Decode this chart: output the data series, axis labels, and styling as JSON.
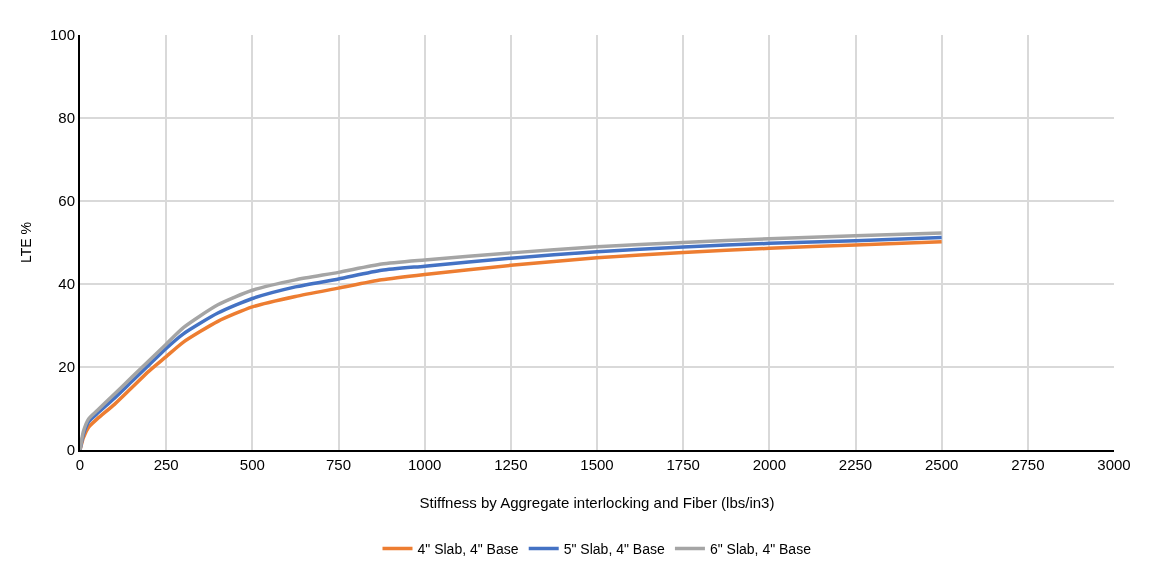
{
  "chart_data": {
    "type": "line",
    "xlabel": "Stiffness by Aggregate interlocking and Fiber (lbs/in3)",
    "ylabel": "LTE %",
    "x": [
      0,
      10,
      25,
      50,
      100,
      150,
      200,
      250,
      300,
      400,
      500,
      625,
      750,
      875,
      1000,
      1250,
      1500,
      1750,
      2000,
      2250,
      2500
    ],
    "series": [
      {
        "name": "4\" Slab, 4\" Base",
        "color": "#ed7d31",
        "values": [
          0,
          3,
          5.5,
          7.5,
          11,
          15,
          19,
          22.5,
          26,
          31,
          34.5,
          37,
          39,
          41,
          42.3,
          44.5,
          46.3,
          47.6,
          48.6,
          49.4,
          50.2
        ]
      },
      {
        "name": "5\" Slab, 4\" Base",
        "color": "#4472c4",
        "values": [
          0,
          3.8,
          6.8,
          8.8,
          12.5,
          16.5,
          20.5,
          24.5,
          28,
          33,
          36.5,
          39.3,
          41.2,
          43.3,
          44.3,
          46.2,
          47.8,
          48.9,
          49.8,
          50.4,
          51.2
        ]
      },
      {
        "name": "6\" Slab, 4\" Base",
        "color": "#a5a5a5",
        "values": [
          0,
          4.5,
          7.5,
          9.5,
          13.5,
          17.5,
          21.5,
          25.5,
          29.5,
          35,
          38.5,
          41,
          42.8,
          44.8,
          45.8,
          47.5,
          49,
          50,
          50.9,
          51.6,
          52.3
        ]
      }
    ],
    "xlim": [
      0,
      3000
    ],
    "xticks": [
      0,
      250,
      500,
      750,
      1000,
      1250,
      1500,
      1750,
      2000,
      2250,
      2500,
      2750,
      3000
    ],
    "ylim": [
      0,
      100
    ],
    "yticks": [
      0,
      20,
      40,
      60,
      80,
      100
    ],
    "grid": true,
    "legend": "bottom",
    "marker": "none",
    "line_style": "solid"
  }
}
